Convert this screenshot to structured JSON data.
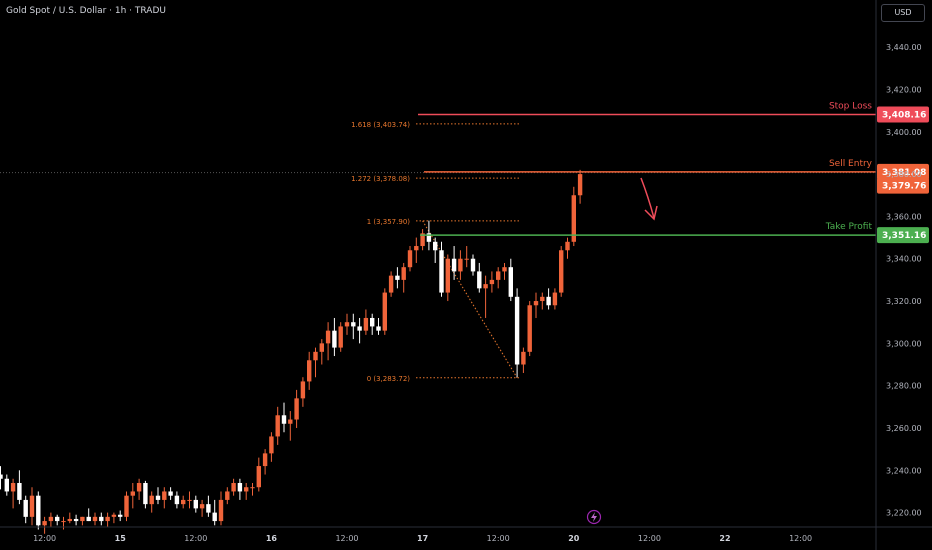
{
  "symbol_title": "Gold Spot / U.S. Dollar · 1h · TRADU",
  "currency": "USD",
  "colors": {
    "up": "#f0643a",
    "down": "#ffffff",
    "stop": "#ef4c5a",
    "entry": "#f0643a",
    "take": "#4caf50",
    "fib": "#e8772e"
  },
  "chart_data": {
    "type": "candlestick",
    "title": "Gold Spot / U.S. Dollar · 1h · TRADU",
    "y_axis": {
      "range": [
        3208,
        3450
      ],
      "ticks": [
        3220,
        3240,
        3260,
        3280,
        3300,
        3320,
        3340,
        3360,
        3380,
        3400,
        3420,
        3440
      ],
      "tick_labels": [
        "3,220.00",
        "3,240.00",
        "3,260.00",
        "3,280.00",
        "3,300.00",
        "3,320.00",
        "3,340.00",
        "3,360.00",
        "3,380.00",
        "3,400.00",
        "3,420.00",
        "3,440.00"
      ]
    },
    "x_axis": {
      "ticks": [
        {
          "label": "12:00",
          "t": 7
        },
        {
          "label": "15",
          "t": 19
        },
        {
          "label": "12:00",
          "t": 31
        },
        {
          "label": "16",
          "t": 43
        },
        {
          "label": "12:00",
          "t": 55
        },
        {
          "label": "17",
          "t": 67
        },
        {
          "label": "12:00",
          "t": 79
        },
        {
          "label": "20",
          "t": 91
        },
        {
          "label": "12:00",
          "t": 103
        },
        {
          "label": "22",
          "t": 115
        },
        {
          "label": "12:00",
          "t": 127
        }
      ]
    },
    "candles": [
      [
        3238,
        3242,
        3231,
        3236
      ],
      [
        3236,
        3238,
        3228,
        3230
      ],
      [
        3230,
        3236,
        3222,
        3234
      ],
      [
        3234,
        3240,
        3224,
        3226
      ],
      [
        3226,
        3228,
        3215,
        3218
      ],
      [
        3218,
        3232,
        3214,
        3228
      ],
      [
        3228,
        3230,
        3212,
        3214
      ],
      [
        3214,
        3218,
        3210,
        3216
      ],
      [
        3216,
        3220,
        3213,
        3218
      ],
      [
        3218,
        3219,
        3214,
        3216
      ],
      [
        3216,
        3218,
        3212,
        3216
      ],
      [
        3216,
        3220,
        3215,
        3217
      ],
      [
        3217,
        3219,
        3214,
        3216
      ],
      [
        3216,
        3218,
        3214,
        3218
      ],
      [
        3218,
        3222,
        3216,
        3216
      ],
      [
        3216,
        3220,
        3214,
        3218
      ],
      [
        3218,
        3220,
        3214,
        3216
      ],
      [
        3216,
        3220,
        3213,
        3218
      ],
      [
        3218,
        3220,
        3215,
        3219
      ],
      [
        3219,
        3221,
        3216,
        3218
      ],
      [
        3218,
        3230,
        3216,
        3228
      ],
      [
        3228,
        3234,
        3222,
        3230
      ],
      [
        3230,
        3236,
        3226,
        3234
      ],
      [
        3234,
        3235,
        3222,
        3224
      ],
      [
        3224,
        3230,
        3220,
        3228
      ],
      [
        3228,
        3232,
        3224,
        3226
      ],
      [
        3226,
        3232,
        3222,
        3230
      ],
      [
        3230,
        3232,
        3226,
        3228
      ],
      [
        3228,
        3230,
        3222,
        3224
      ],
      [
        3224,
        3228,
        3222,
        3226
      ],
      [
        3226,
        3230,
        3222,
        3226
      ],
      [
        3226,
        3228,
        3220,
        3222
      ],
      [
        3222,
        3226,
        3218,
        3224
      ],
      [
        3224,
        3228,
        3218,
        3220
      ],
      [
        3220,
        3226,
        3214,
        3216
      ],
      [
        3216,
        3230,
        3214,
        3226
      ],
      [
        3226,
        3232,
        3224,
        3230
      ],
      [
        3230,
        3236,
        3228,
        3234
      ],
      [
        3234,
        3236,
        3226,
        3230
      ],
      [
        3230,
        3234,
        3226,
        3232
      ],
      [
        3232,
        3234,
        3228,
        3232
      ],
      [
        3232,
        3246,
        3230,
        3242
      ],
      [
        3242,
        3250,
        3238,
        3248
      ],
      [
        3248,
        3258,
        3244,
        3256
      ],
      [
        3256,
        3270,
        3252,
        3266
      ],
      [
        3266,
        3272,
        3258,
        3262
      ],
      [
        3262,
        3268,
        3254,
        3264
      ],
      [
        3264,
        3278,
        3260,
        3274
      ],
      [
        3274,
        3284,
        3270,
        3282
      ],
      [
        3282,
        3296,
        3278,
        3292
      ],
      [
        3292,
        3298,
        3284,
        3296
      ],
      [
        3296,
        3302,
        3290,
        3300
      ],
      [
        3300,
        3310,
        3292,
        3306
      ],
      [
        3306,
        3312,
        3294,
        3298
      ],
      [
        3298,
        3310,
        3296,
        3308
      ],
      [
        3308,
        3314,
        3304,
        3310
      ],
      [
        3310,
        3314,
        3302,
        3308
      ],
      [
        3308,
        3312,
        3300,
        3306
      ],
      [
        3306,
        3316,
        3304,
        3312
      ],
      [
        3312,
        3314,
        3304,
        3308
      ],
      [
        3308,
        3312,
        3304,
        3306
      ],
      [
        3306,
        3326,
        3304,
        3324
      ],
      [
        3324,
        3334,
        3322,
        3332
      ],
      [
        3332,
        3336,
        3326,
        3330
      ],
      [
        3330,
        3338,
        3324,
        3336
      ],
      [
        3336,
        3346,
        3334,
        3344
      ],
      [
        3344,
        3350,
        3338,
        3346
      ],
      [
        3346,
        3354,
        3344,
        3352
      ],
      [
        3352,
        3358,
        3344,
        3348
      ],
      [
        3348,
        3350,
        3338,
        3344
      ],
      [
        3344,
        3348,
        3322,
        3324
      ],
      [
        3324,
        3342,
        3320,
        3340
      ],
      [
        3340,
        3346,
        3330,
        3334
      ],
      [
        3334,
        3344,
        3330,
        3340
      ],
      [
        3340,
        3346,
        3336,
        3340
      ],
      [
        3340,
        3342,
        3332,
        3334
      ],
      [
        3334,
        3338,
        3324,
        3326
      ],
      [
        3326,
        3332,
        3312,
        3328
      ],
      [
        3328,
        3334,
        3324,
        3330
      ],
      [
        3330,
        3336,
        3326,
        3334
      ],
      [
        3334,
        3338,
        3330,
        3336
      ],
      [
        3336,
        3340,
        3320,
        3322
      ],
      [
        3322,
        3326,
        3284,
        3290
      ],
      [
        3290,
        3298,
        3286,
        3296
      ],
      [
        3296,
        3320,
        3294,
        3318
      ],
      [
        3318,
        3324,
        3312,
        3320
      ],
      [
        3320,
        3324,
        3316,
        3322
      ],
      [
        3322,
        3326,
        3316,
        3318
      ],
      [
        3318,
        3326,
        3316,
        3324
      ],
      [
        3324,
        3346,
        3322,
        3344
      ],
      [
        3344,
        3350,
        3340,
        3348
      ],
      [
        3348,
        3374,
        3346,
        3370
      ],
      [
        3370,
        3382,
        3366,
        3380
      ]
    ],
    "fibonacci": [
      {
        "label": "1.618 (3,403.74)",
        "value": 3403.74
      },
      {
        "label": "1.272 (3,378.08)",
        "value": 3378.08
      },
      {
        "label": "1 (3,357.90)",
        "value": 3357.9
      },
      {
        "label": "0 (3,283.72)",
        "value": 3283.72
      }
    ],
    "levels": [
      {
        "name": "Stop Loss",
        "value": 3408.16,
        "price_label": "3,408.16",
        "color": "#ef4c5a"
      },
      {
        "name": "Sell Entry",
        "value": 3381.08,
        "price_label": "3,381.08",
        "color": "#f0643a"
      },
      {
        "name": "Take Profit",
        "value": 3351.16,
        "price_label": "3,351.16",
        "color": "#4caf50"
      }
    ],
    "current_price": {
      "value": 3379.76,
      "label": "3,379.76"
    }
  }
}
